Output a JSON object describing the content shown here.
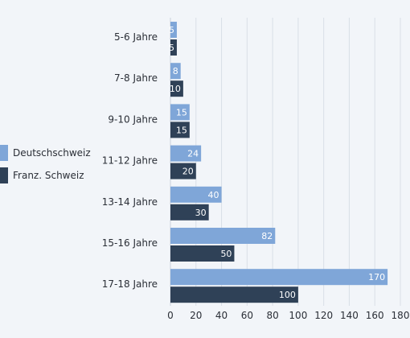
{
  "chart_data": {
    "type": "bar",
    "orientation": "horizontal",
    "categories": [
      "5-6 Jahre",
      "7-8 Jahre",
      "9-10 Jahre",
      "11-12 Jahre",
      "13-14 Jahre",
      "15-16 Jahre",
      "17-18 Jahre"
    ],
    "series": [
      {
        "name": "Deutschschweiz",
        "color": "#7fa6d8",
        "values": [
          5,
          8,
          15,
          24,
          40,
          82,
          170
        ]
      },
      {
        "name": "Franz. Schweiz",
        "color": "#2f4157",
        "values": [
          5,
          10,
          15,
          20,
          30,
          50,
          100
        ]
      }
    ],
    "xlim": [
      0,
      180
    ],
    "xticks": [
      0,
      20,
      40,
      60,
      80,
      100,
      120,
      140,
      160,
      180
    ],
    "grid": true,
    "legend_position": "left",
    "title": "",
    "xlabel": "",
    "ylabel": ""
  }
}
